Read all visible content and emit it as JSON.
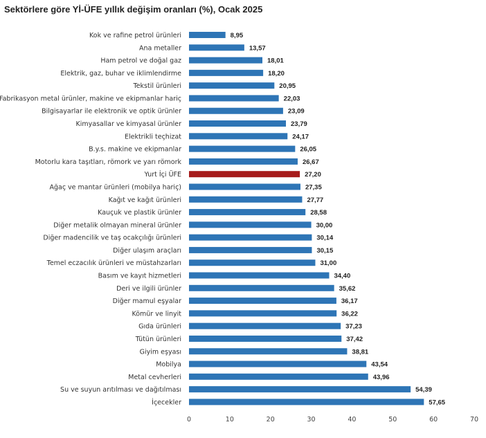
{
  "chart_data": {
    "type": "bar",
    "orientation": "horizontal",
    "title": "Sektörlere göre Yİ-ÜFE yıllık değişim oranları (%), Ocak 2025",
    "xlabel": "",
    "ylabel": "",
    "xlim": [
      0,
      70
    ],
    "xticks": [
      "0",
      "10",
      "20",
      "30",
      "40",
      "50",
      "60",
      "70"
    ],
    "grid": false,
    "colors": {
      "default": "#2E75B6",
      "highlight": "#A61C1C"
    },
    "highlight_category": "Yurt İçi ÜFE",
    "categories": [
      "Kok ve rafine petrol ürünleri",
      "Ana metaller",
      "Ham petrol ve doğal gaz",
      "Elektrik, gaz, buhar ve iklimlendirme",
      "Tekstil ürünleri",
      "Fabrikasyon metal ürünler, makine ve ekipmanlar hariç",
      "Bilgisayarlar ile elektronik ve optik ürünler",
      "Kimyasallar ve kimyasal ürünler",
      "Elektrikli teçhizat",
      "B.y.s. makine ve ekipmanlar",
      "Motorlu kara taşıtları, römork ve yarı römork",
      "Yurt İçi ÜFE",
      "Ağaç ve mantar ürünleri (mobilya hariç)",
      "Kağıt ve kağıt ürünleri",
      "Kauçuk ve plastik ürünler",
      "Diğer metalik olmayan mineral ürünler",
      "Diğer madencilik ve taş ocakçılığı ürünleri",
      "Diğer ulaşım araçları",
      "Temel eczacılık ürünleri ve müstahzarları",
      "Basım ve kayıt hizmetleri",
      "Deri ve ilgili ürünler",
      "Diğer mamul eşyalar",
      "Kömür ve linyit",
      "Gıda ürünleri",
      "Tütün ürünleri",
      "Giyim eşyası",
      "Mobilya",
      "Metal cevherleri",
      "Su ve suyun arıtılması ve dağıtılması",
      "İçecekler"
    ],
    "values": [
      8.95,
      13.57,
      18.01,
      18.2,
      20.95,
      22.03,
      23.09,
      23.79,
      24.17,
      26.05,
      26.67,
      27.2,
      27.35,
      27.77,
      28.58,
      30.0,
      30.14,
      30.15,
      31.0,
      34.4,
      35.62,
      36.17,
      36.22,
      37.23,
      37.42,
      38.81,
      43.54,
      43.96,
      54.39,
      57.65
    ],
    "value_labels": [
      "8,95",
      "13,57",
      "18,01",
      "18,20",
      "20,95",
      "22,03",
      "23,09",
      "23,79",
      "24,17",
      "26,05",
      "26,67",
      "27,20",
      "27,35",
      "27,77",
      "28,58",
      "30,00",
      "30,14",
      "30,15",
      "31,00",
      "34,40",
      "35,62",
      "36,17",
      "36,22",
      "37,23",
      "37,42",
      "38,81",
      "43,54",
      "43,96",
      "54,39",
      "57,65"
    ]
  }
}
